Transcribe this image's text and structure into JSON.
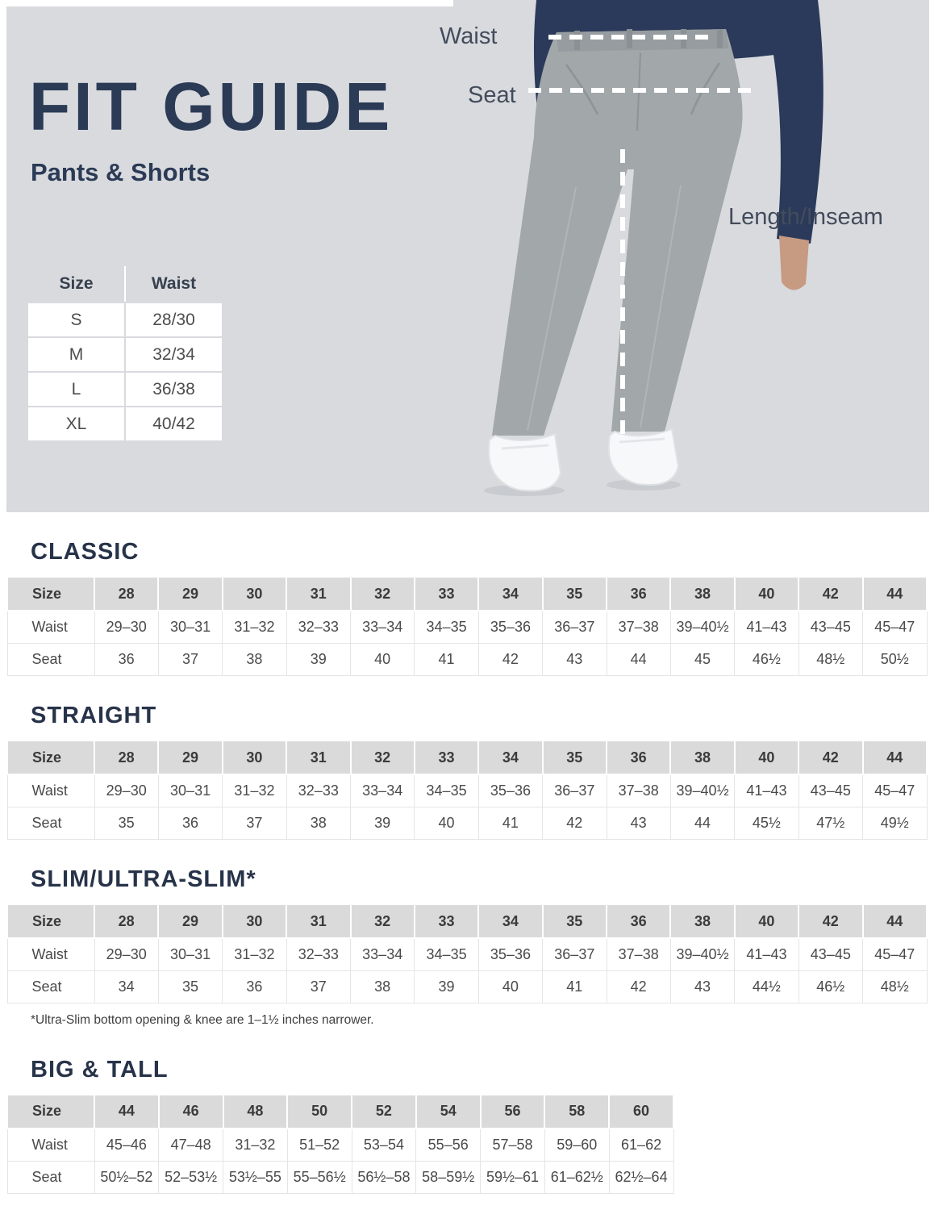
{
  "hero": {
    "title": "FIT GUIDE",
    "subtitle": "Pants & Shorts",
    "bg_color": "#d8dade",
    "accent_color": "#2b3a55",
    "measure_labels": {
      "waist": "Waist",
      "seat": "Seat",
      "length": "Length/Inseam"
    },
    "size_table": {
      "headers": [
        "Size",
        "Waist"
      ],
      "rows": [
        [
          "S",
          "28/30"
        ],
        [
          "M",
          "32/34"
        ],
        [
          "L",
          "36/38"
        ],
        [
          "XL",
          "40/42"
        ]
      ]
    },
    "figure_colors": {
      "shirt": "#2b3a5a",
      "pants": "#a2a7a9",
      "skin": "#c79a82",
      "shoes": "#f7f8f9"
    }
  },
  "tables": [
    {
      "heading": "CLASSIC",
      "col_header": "Size",
      "sizes": [
        "28",
        "29",
        "30",
        "31",
        "32",
        "33",
        "34",
        "35",
        "36",
        "38",
        "40",
        "42",
        "44"
      ],
      "rows": [
        {
          "label": "Waist",
          "values": [
            "29–30",
            "30–31",
            "31–32",
            "32–33",
            "33–34",
            "34–35",
            "35–36",
            "36–37",
            "37–38",
            "39–40½",
            "41–43",
            "43–45",
            "45–47"
          ]
        },
        {
          "label": "Seat",
          "values": [
            "36",
            "37",
            "38",
            "39",
            "40",
            "41",
            "42",
            "43",
            "44",
            "45",
            "46½",
            "48½",
            "50½"
          ]
        }
      ]
    },
    {
      "heading": "STRAIGHT",
      "col_header": "Size",
      "sizes": [
        "28",
        "29",
        "30",
        "31",
        "32",
        "33",
        "34",
        "35",
        "36",
        "38",
        "40",
        "42",
        "44"
      ],
      "rows": [
        {
          "label": "Waist",
          "values": [
            "29–30",
            "30–31",
            "31–32",
            "32–33",
            "33–34",
            "34–35",
            "35–36",
            "36–37",
            "37–38",
            "39–40½",
            "41–43",
            "43–45",
            "45–47"
          ]
        },
        {
          "label": "Seat",
          "values": [
            "35",
            "36",
            "37",
            "38",
            "39",
            "40",
            "41",
            "42",
            "43",
            "44",
            "45½",
            "47½",
            "49½"
          ]
        }
      ]
    },
    {
      "heading": "SLIM/ULTRA-SLIM*",
      "col_header": "Size",
      "sizes": [
        "28",
        "29",
        "30",
        "31",
        "32",
        "33",
        "34",
        "35",
        "36",
        "38",
        "40",
        "42",
        "44"
      ],
      "rows": [
        {
          "label": "Waist",
          "values": [
            "29–30",
            "30–31",
            "31–32",
            "32–33",
            "33–34",
            "34–35",
            "35–36",
            "36–37",
            "37–38",
            "39–40½",
            "41–43",
            "43–45",
            "45–47"
          ]
        },
        {
          "label": "Seat",
          "values": [
            "34",
            "35",
            "36",
            "37",
            "38",
            "39",
            "40",
            "41",
            "42",
            "43",
            "44½",
            "46½",
            "48½"
          ]
        }
      ]
    },
    {
      "heading": "BIG & TALL",
      "col_header": "Size",
      "sizes": [
        "44",
        "46",
        "48",
        "50",
        "52",
        "54",
        "56",
        "58",
        "60"
      ],
      "rows": [
        {
          "label": "Waist",
          "values": [
            "45–46",
            "47–48",
            "31–32",
            "51–52",
            "53–54",
            "55–56",
            "57–58",
            "59–60",
            "61–62"
          ]
        },
        {
          "label": "Seat",
          "values": [
            "50½–52",
            "52–53½",
            "53½–55",
            "55–56½",
            "56½–58",
            "58–59½",
            "59½–61",
            "61–62½",
            "62½–64"
          ]
        }
      ]
    }
  ],
  "footnote": "*Ultra-Slim bottom opening & knee are 1–1½ inches narrower."
}
